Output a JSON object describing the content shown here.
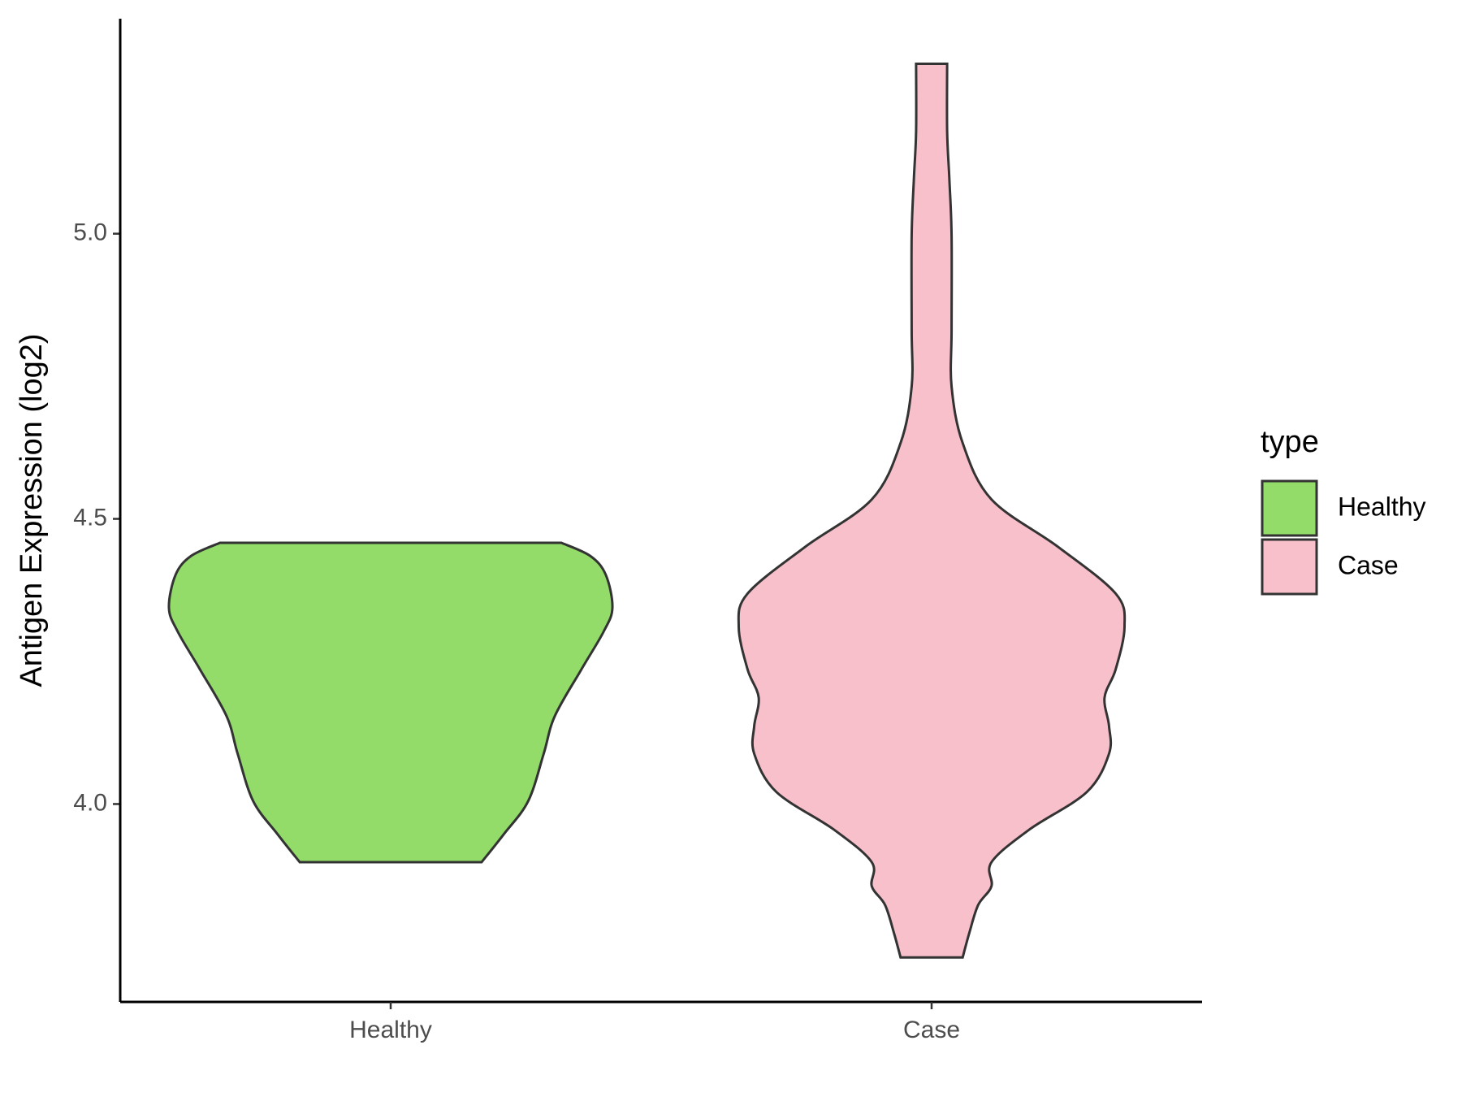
{
  "chart_data": {
    "type": "violin",
    "ylabel": "Antigen Expression (log2)",
    "legend_title": "type",
    "legend": "right",
    "categories": [
      "Healthy",
      "Case"
    ],
    "ylim": [
      3.653,
      5.377
    ],
    "yticks": [
      {
        "value": 4,
        "label": "4.0"
      },
      4.5,
      {
        "value": 5,
        "label": "5.0"
      }
    ],
    "series": [
      {
        "name": "Healthy",
        "color": "#93dc6a",
        "y": [
          3.898,
          3.947,
          4.005,
          4.088,
          4.154,
          4.236,
          4.302,
          4.344,
          4.402,
          4.435,
          4.458
        ],
        "density": [
          0.41,
          0.51,
          0.62,
          0.69,
          0.74,
          0.86,
          0.96,
          1.0,
          0.97,
          0.9,
          0.77
        ]
      },
      {
        "name": "Case",
        "color": "#f7c0cb",
        "y": [
          3.731,
          3.774,
          3.823,
          3.856,
          3.898,
          3.955,
          4.021,
          4.088,
          4.137,
          4.187,
          4.236,
          4.311,
          4.369,
          4.451,
          4.534,
          4.633,
          4.732,
          4.831,
          4.997,
          5.096,
          5.179,
          5.298
        ],
        "density": [
          0.14,
          0.17,
          0.21,
          0.27,
          0.27,
          0.44,
          0.7,
          0.8,
          0.8,
          0.78,
          0.83,
          0.87,
          0.83,
          0.57,
          0.27,
          0.14,
          0.09,
          0.09,
          0.09,
          0.08,
          0.07,
          0.07
        ]
      }
    ]
  }
}
